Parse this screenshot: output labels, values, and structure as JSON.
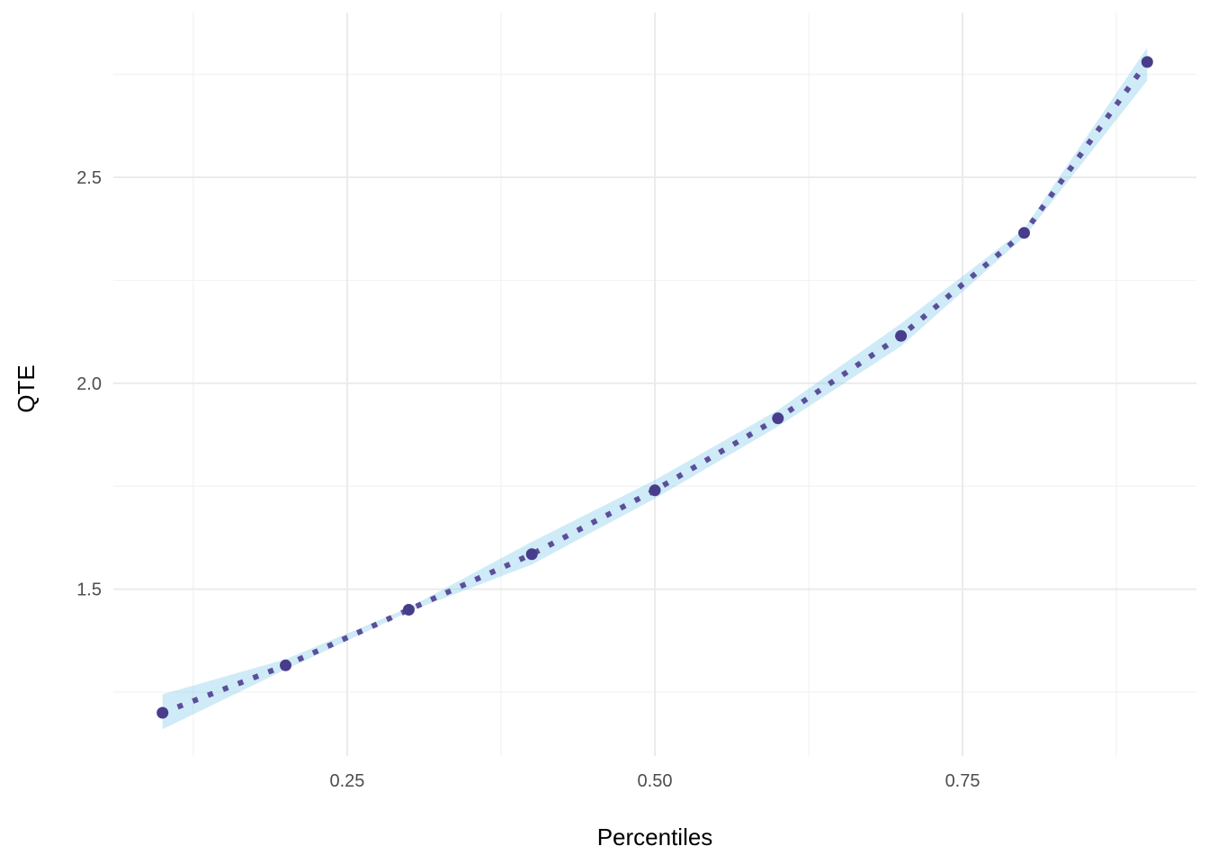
{
  "chart_data": {
    "type": "line",
    "xlabel": "Percentiles",
    "ylabel": "QTE",
    "xlim": [
      0.06,
      0.94
    ],
    "ylim": [
      1.095,
      2.9
    ],
    "x_ticks": [
      {
        "value": 0.25,
        "label": "0.25"
      },
      {
        "value": 0.5,
        "label": "0.50"
      },
      {
        "value": 0.75,
        "label": "0.75"
      }
    ],
    "x_minor_ticks": [
      0.125,
      0.375,
      0.625,
      0.875
    ],
    "y_ticks": [
      {
        "value": 1.5,
        "label": "1.5"
      },
      {
        "value": 2.0,
        "label": "2.0"
      },
      {
        "value": 2.5,
        "label": "2.5"
      }
    ],
    "y_minor_ticks": [
      1.25,
      1.75,
      2.25,
      2.75
    ],
    "grid": true,
    "legend": "none",
    "colors": {
      "line": "#5b4f9a",
      "point": "#483d8b",
      "ribbon": "#87ceeb"
    },
    "series": [
      {
        "x": [
          0.1,
          0.2,
          0.3,
          0.4,
          0.5,
          0.6,
          0.7,
          0.8,
          0.9
        ],
        "y": [
          1.2,
          1.315,
          1.45,
          1.585,
          1.74,
          1.915,
          2.115,
          2.365,
          2.78
        ],
        "lower": [
          1.16,
          1.305,
          1.445,
          1.56,
          1.72,
          1.895,
          2.09,
          2.355,
          2.735
        ],
        "upper": [
          1.245,
          1.33,
          1.455,
          1.615,
          1.765,
          1.935,
          2.145,
          2.375,
          2.815
        ]
      }
    ]
  }
}
